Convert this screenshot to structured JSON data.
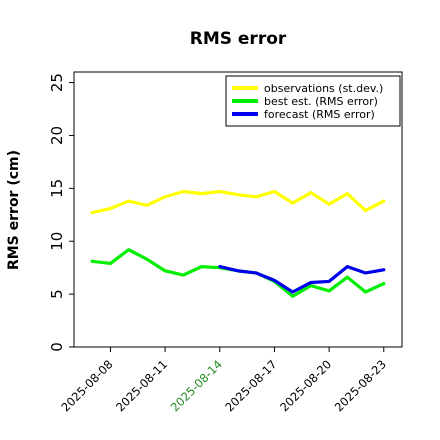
{
  "chart_data": {
    "type": "line",
    "title": "RMS error",
    "xlabel": "",
    "ylabel": "RMS error (cm)",
    "ylim": [
      0,
      26
    ],
    "yticks": [
      0,
      5,
      10,
      15,
      20,
      25
    ],
    "xlim": [
      "2025-08-06",
      "2025-08-24"
    ],
    "xtick_labels": [
      "2025-08-08",
      "2025-08-11",
      "2025-08-14",
      "2025-08-17",
      "2025-08-20",
      "2025-08-23"
    ],
    "xtick_dates": [
      "2025-08-08",
      "2025-08-11",
      "2025-08-14",
      "2025-08-17",
      "2025-08-20",
      "2025-08-23"
    ],
    "xtick_colors": [
      "#000000",
      "#000000",
      "#228b22",
      "#000000",
      "#000000",
      "#000000"
    ],
    "grid": false,
    "legend_position": "top-right",
    "series": [
      {
        "name": "observations (st.dev.)",
        "color": "#ffff00",
        "x": [
          "2025-08-07",
          "2025-08-08",
          "2025-08-09",
          "2025-08-10",
          "2025-08-11",
          "2025-08-12",
          "2025-08-13",
          "2025-08-14",
          "2025-08-15",
          "2025-08-16",
          "2025-08-17",
          "2025-08-18",
          "2025-08-19",
          "2025-08-20",
          "2025-08-21",
          "2025-08-22",
          "2025-08-23"
        ],
        "values": [
          12.7,
          13.1,
          13.8,
          13.4,
          14.2,
          14.7,
          14.5,
          14.7,
          14.4,
          14.2,
          14.7,
          13.6,
          14.6,
          13.5,
          14.5,
          12.9,
          13.8
        ]
      },
      {
        "name": "best est. (RMS error)",
        "color": "#00ee00",
        "x": [
          "2025-08-07",
          "2025-08-08",
          "2025-08-09",
          "2025-08-10",
          "2025-08-11",
          "2025-08-12",
          "2025-08-13",
          "2025-08-14",
          "2025-08-15",
          "2025-08-16",
          "2025-08-17",
          "2025-08-18",
          "2025-08-19",
          "2025-08-20",
          "2025-08-21",
          "2025-08-22",
          "2025-08-23"
        ],
        "values": [
          8.1,
          7.9,
          9.2,
          8.3,
          7.2,
          6.8,
          7.6,
          7.5,
          7.2,
          7.0,
          6.2,
          4.8,
          5.8,
          5.3,
          6.6,
          5.2,
          6.0
        ]
      },
      {
        "name": "forecast (RMS error)",
        "color": "#0000ee",
        "x": [
          "2025-08-14",
          "2025-08-15",
          "2025-08-16",
          "2025-08-17",
          "2025-08-18",
          "2025-08-19",
          "2025-08-20",
          "2025-08-21",
          "2025-08-22",
          "2025-08-23"
        ],
        "values": [
          7.6,
          7.2,
          7.0,
          6.3,
          5.2,
          6.1,
          6.2,
          7.6,
          7.0,
          7.3
        ]
      }
    ]
  }
}
